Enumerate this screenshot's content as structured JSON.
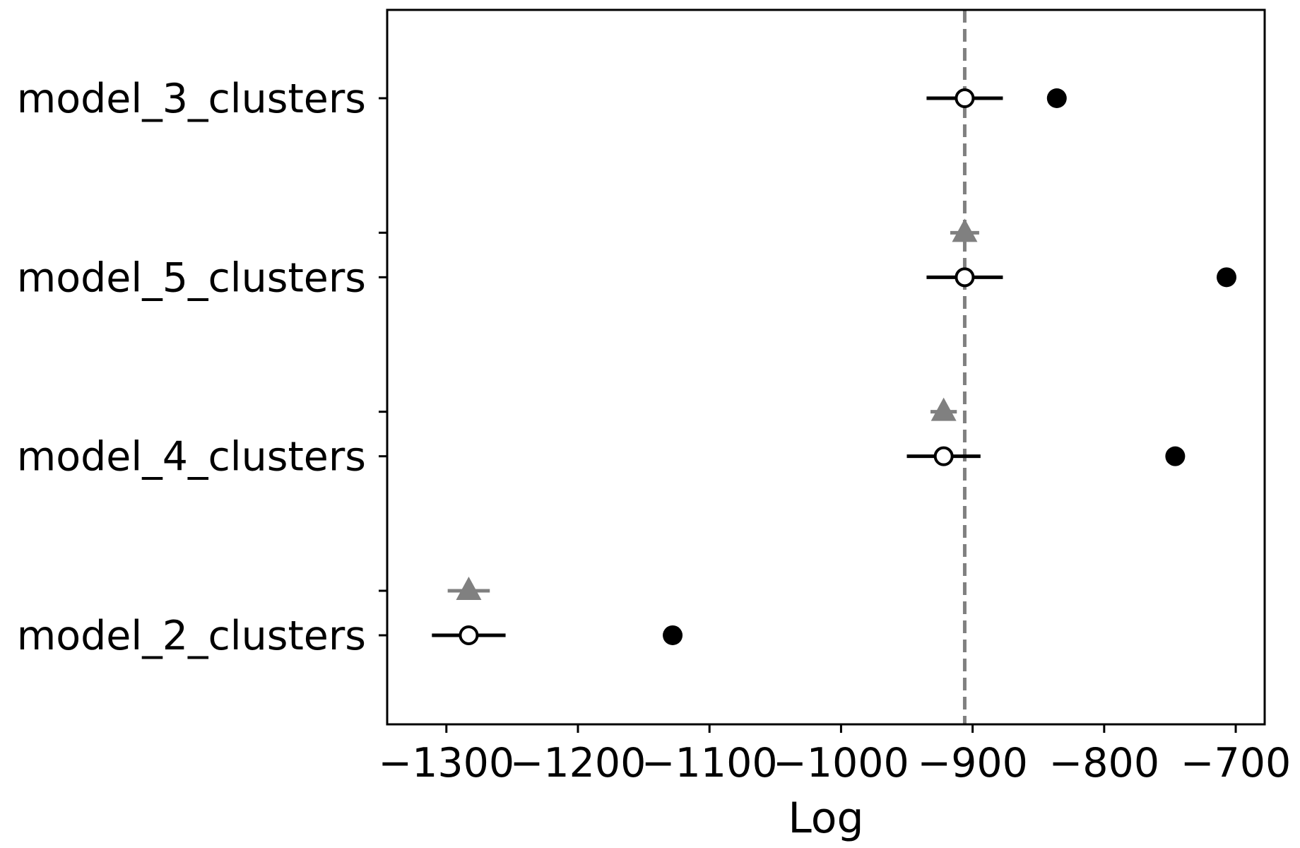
{
  "chart_data": {
    "type": "scatter",
    "title": "",
    "xlabel": "Log",
    "ylabel": "",
    "xlim": [
      -1345,
      -678
    ],
    "xticks": [
      -1300,
      -1200,
      -1100,
      -1000,
      -900,
      -800,
      -700
    ],
    "xtick_labels": [
      "−1300",
      "−1200",
      "−1100",
      "−1000",
      "−900",
      "−800",
      "−700"
    ],
    "categories": [
      "model_3_clusters",
      "model_5_clusters",
      "model_4_clusters",
      "model_2_clusters"
    ],
    "reference_line": {
      "x": -906,
      "style": "dashed",
      "color": "#808080"
    },
    "series": [
      {
        "marker": "filled-circle",
        "color": "#000000",
        "values": [
          -836,
          -707,
          -746,
          -1128
        ]
      },
      {
        "marker": "open-circle",
        "color": "#000000",
        "values": [
          -906,
          -906,
          -922,
          -1283
        ],
        "error": [
          29,
          29,
          28,
          28
        ]
      },
      {
        "marker": "triangle",
        "color": "#808080",
        "values": [
          null,
          -906,
          -922,
          -1283
        ],
        "error": [
          null,
          11,
          10,
          16
        ]
      }
    ],
    "grid": false,
    "legend": "none"
  }
}
